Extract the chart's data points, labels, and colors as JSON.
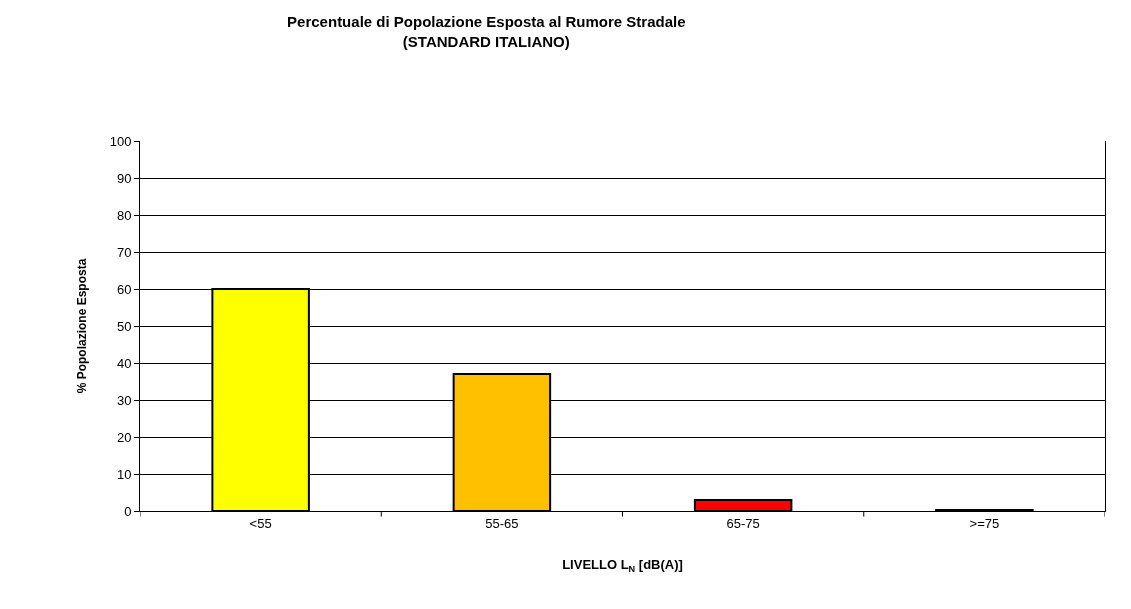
{
  "chart_data": {
    "type": "bar",
    "title": "Percentuale di Popolazione Esposta al Rumore Stradale\n(STANDARD ITALIANO)",
    "xlabel": "LIVELLO L$_{N}$ [dB(A)]",
    "ylabel": "% Popolazione Esposta",
    "categories": [
      "<55",
      "55-65",
      "65-75",
      ">=75"
    ],
    "values": [
      60,
      37,
      3,
      0.3
    ],
    "colors": [
      "#ffff00",
      "#ffc000",
      "#ff0000",
      "#000000"
    ],
    "ylim": [
      0,
      100
    ],
    "yticks": [
      0,
      10,
      20,
      30,
      40,
      50,
      60,
      70,
      80,
      90,
      100
    ],
    "grid": "y"
  }
}
